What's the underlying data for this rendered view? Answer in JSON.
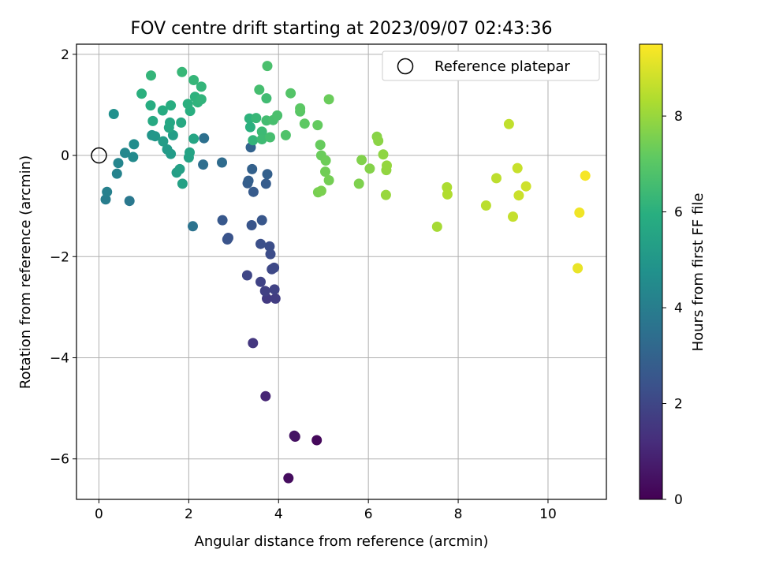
{
  "chart_data": {
    "type": "scatter",
    "title": "FOV centre drift starting at 2023/09/07 02:43:36",
    "xlabel": "Angular distance from reference (arcmin)",
    "ylabel": "Rotation from reference (arcmin)",
    "xlim": [
      -0.5,
      11.3
    ],
    "ylim": [
      -6.8,
      2.2
    ],
    "xticks": [
      0,
      2,
      4,
      6,
      8,
      10
    ],
    "yticks": [
      -6,
      -4,
      -2,
      0,
      2
    ],
    "grid": true,
    "colormap": "viridis",
    "colorbar": {
      "label": "Hours from first FF file",
      "range": [
        0,
        9.5
      ],
      "ticks": [
        0,
        2,
        4,
        6,
        8
      ]
    },
    "legend": {
      "position": "top-right",
      "entries": [
        {
          "label": "Reference platepar",
          "marker": "hollow-circle",
          "x": 0,
          "y": 0
        }
      ]
    },
    "series": [
      {
        "points": [
          [
            4.85,
            -5.63,
            0.2
          ],
          [
            4.22,
            -6.38,
            0.3
          ],
          [
            4.37,
            -5.56,
            0.4
          ],
          [
            4.35,
            -5.54,
            0.5
          ],
          [
            3.71,
            -4.76,
            1.0
          ],
          [
            3.43,
            -3.71,
            1.5
          ],
          [
            3.74,
            -2.83,
            1.6
          ],
          [
            3.93,
            -2.83,
            1.7
          ],
          [
            3.7,
            -2.68,
            1.8
          ],
          [
            3.91,
            -2.65,
            1.85
          ],
          [
            3.6,
            -2.5,
            1.9
          ],
          [
            3.3,
            -2.37,
            2.0
          ],
          [
            3.85,
            -2.25,
            2.05
          ],
          [
            3.9,
            -2.22,
            2.1
          ],
          [
            3.82,
            -1.95,
            2.2
          ],
          [
            3.8,
            -1.8,
            2.25
          ],
          [
            3.6,
            -1.75,
            2.3
          ],
          [
            2.88,
            -1.63,
            2.4
          ],
          [
            2.86,
            -1.66,
            2.45
          ],
          [
            3.4,
            -1.38,
            2.5
          ],
          [
            3.63,
            -1.28,
            2.55
          ],
          [
            2.75,
            -1.28,
            2.6
          ],
          [
            3.44,
            -0.72,
            2.7
          ],
          [
            3.72,
            -0.56,
            2.75
          ],
          [
            3.31,
            -0.55,
            2.8
          ],
          [
            3.33,
            -0.5,
            2.85
          ],
          [
            3.75,
            -0.37,
            2.9
          ],
          [
            3.41,
            -0.27,
            2.95
          ],
          [
            3.38,
            0.16,
            3.0
          ],
          [
            2.74,
            -0.14,
            3.3
          ],
          [
            2.32,
            -0.18,
            3.4
          ],
          [
            2.34,
            0.34,
            3.5
          ],
          [
            2.09,
            -1.4,
            3.6
          ],
          [
            0.68,
            -0.9,
            3.8
          ],
          [
            0.15,
            -0.87,
            4.0
          ],
          [
            0.18,
            -0.72,
            4.1
          ],
          [
            0.4,
            -0.36,
            4.2
          ],
          [
            0.43,
            -0.15,
            4.3
          ],
          [
            0.58,
            0.05,
            4.4
          ],
          [
            0.76,
            -0.03,
            4.5
          ],
          [
            0.78,
            0.22,
            4.6
          ],
          [
            0.33,
            0.82,
            4.7
          ],
          [
            1.18,
            0.4,
            4.9
          ],
          [
            1.25,
            0.38,
            5.0
          ],
          [
            1.52,
            0.12,
            5.1
          ],
          [
            1.6,
            0.03,
            5.15
          ],
          [
            1.43,
            0.28,
            5.2
          ],
          [
            1.65,
            0.4,
            5.25
          ],
          [
            1.73,
            -0.34,
            5.3
          ],
          [
            1.8,
            -0.27,
            5.35
          ],
          [
            1.86,
            -0.56,
            5.4
          ],
          [
            2.0,
            -0.04,
            5.45
          ],
          [
            2.02,
            0.06,
            5.5
          ],
          [
            2.11,
            0.33,
            5.55
          ],
          [
            1.56,
            0.55,
            5.6
          ],
          [
            1.58,
            0.65,
            5.65
          ],
          [
            1.83,
            0.65,
            5.7
          ],
          [
            1.2,
            0.68,
            5.75
          ],
          [
            1.42,
            0.89,
            5.8
          ],
          [
            1.15,
            0.99,
            5.85
          ],
          [
            1.6,
            0.99,
            5.9
          ],
          [
            2.03,
            0.88,
            5.95
          ],
          [
            1.98,
            1.02,
            6.0
          ],
          [
            2.14,
            1.16,
            6.05
          ],
          [
            2.2,
            1.05,
            6.1
          ],
          [
            2.28,
            1.11,
            6.15
          ],
          [
            2.28,
            1.36,
            6.2
          ],
          [
            2.11,
            1.49,
            6.25
          ],
          [
            0.95,
            1.22,
            6.0
          ],
          [
            1.16,
            1.58,
            6.2
          ],
          [
            1.85,
            1.65,
            6.3
          ],
          [
            3.35,
            0.73,
            6.1
          ],
          [
            3.37,
            0.56,
            6.0
          ],
          [
            3.43,
            0.3,
            6.2
          ],
          [
            3.5,
            0.74,
            6.3
          ],
          [
            3.63,
            0.47,
            6.4
          ],
          [
            3.63,
            0.32,
            6.45
          ],
          [
            3.73,
            1.13,
            6.5
          ],
          [
            3.73,
            0.69,
            6.55
          ],
          [
            3.81,
            0.36,
            6.6
          ],
          [
            3.88,
            0.7,
            6.65
          ],
          [
            3.97,
            0.79,
            6.7
          ],
          [
            3.57,
            1.3,
            6.6
          ],
          [
            3.75,
            1.77,
            6.7
          ],
          [
            4.16,
            0.4,
            6.8
          ],
          [
            4.27,
            1.23,
            6.9
          ],
          [
            4.48,
            0.87,
            7.0
          ],
          [
            4.48,
            0.93,
            7.05
          ],
          [
            4.58,
            0.63,
            7.1
          ],
          [
            4.87,
            0.6,
            7.2
          ],
          [
            4.93,
            0.21,
            7.25
          ],
          [
            4.95,
            0.0,
            7.3
          ],
          [
            5.12,
            1.11,
            7.3
          ],
          [
            5.05,
            -0.1,
            7.35
          ],
          [
            5.04,
            -0.32,
            7.4
          ],
          [
            5.12,
            -0.49,
            7.45
          ],
          [
            4.88,
            -0.73,
            7.5
          ],
          [
            4.95,
            -0.7,
            7.55
          ],
          [
            5.79,
            -0.56,
            7.6
          ],
          [
            5.85,
            -0.09,
            7.65
          ],
          [
            6.03,
            -0.26,
            7.7
          ],
          [
            6.19,
            0.37,
            7.75
          ],
          [
            6.22,
            0.29,
            7.8
          ],
          [
            6.33,
            0.02,
            7.85
          ],
          [
            6.4,
            -0.29,
            7.9
          ],
          [
            6.41,
            -0.2,
            7.95
          ],
          [
            6.39,
            -0.78,
            8.0
          ],
          [
            7.53,
            -1.41,
            8.2
          ],
          [
            7.75,
            -0.63,
            8.3
          ],
          [
            7.76,
            -0.77,
            8.35
          ],
          [
            8.62,
            -0.99,
            8.5
          ],
          [
            8.85,
            -0.45,
            8.55
          ],
          [
            9.13,
            0.62,
            8.6
          ],
          [
            9.22,
            -1.21,
            8.65
          ],
          [
            9.32,
            -0.25,
            8.7
          ],
          [
            9.35,
            -0.79,
            8.75
          ],
          [
            9.51,
            -0.61,
            8.8
          ],
          [
            10.66,
            -2.23,
            9.2
          ],
          [
            10.7,
            -1.13,
            9.3
          ],
          [
            10.83,
            -0.4,
            9.4
          ]
        ]
      }
    ]
  }
}
